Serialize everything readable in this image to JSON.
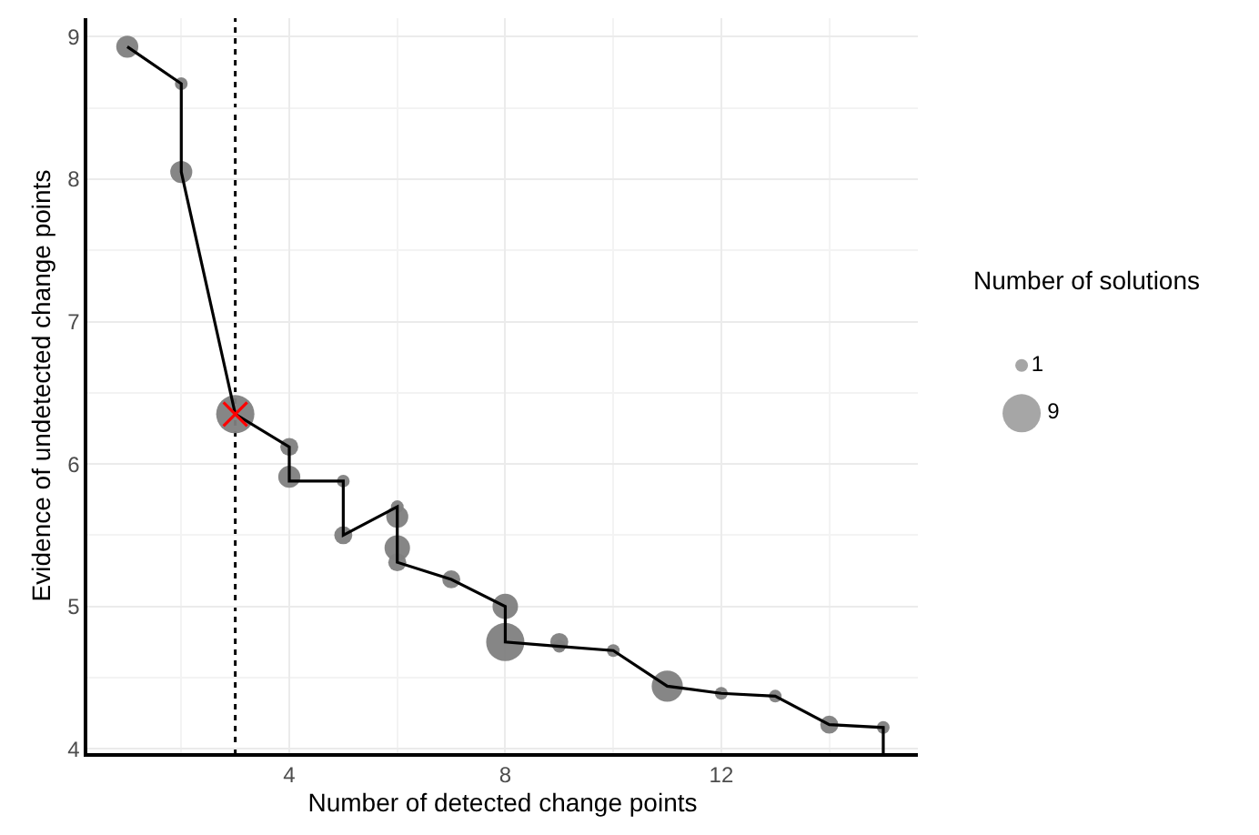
{
  "chart_data": {
    "type": "bubble",
    "xlabel": "Number of detected change points",
    "ylabel": "Evidence of undetected change points",
    "legend_title": "Number of solutions",
    "xlim": [
      0.26,
      15.64
    ],
    "xticks": [
      4,
      8,
      12
    ],
    "ylim": [
      3.97,
      9.13
    ],
    "yticks": [
      4,
      5,
      6,
      7,
      8,
      9
    ],
    "grid": true,
    "size_legend": [
      1,
      9
    ],
    "ref_lines": [
      {
        "axis": "x",
        "value": 3,
        "line_style": "dotted",
        "color": "#000000"
      }
    ],
    "series": [
      {
        "color": "#808080",
        "x": [
          1,
          2,
          2,
          3,
          4,
          4,
          5,
          5,
          6,
          6,
          6,
          6,
          7,
          8,
          8,
          9,
          9,
          10,
          11,
          12,
          13,
          14,
          15
        ],
        "values": [
          8.93,
          8.67,
          8.05,
          6.35,
          6.12,
          5.91,
          5.88,
          5.5,
          5.7,
          5.63,
          5.41,
          5.31,
          5.19,
          5.0,
          4.75,
          4.75,
          4.72,
          4.69,
          4.44,
          4.39,
          4.37,
          4.17,
          4.15
        ],
        "sizes": [
          3,
          1,
          3,
          9,
          2,
          3,
          1,
          2,
          1,
          3,
          4,
          2,
          2,
          4,
          9,
          2,
          1,
          1,
          6,
          1,
          1,
          2,
          1
        ]
      },
      {
        "type": "line",
        "color": "#000000",
        "marker": "none",
        "line_style": "solid",
        "x": [
          1,
          2,
          2,
          3,
          4,
          4,
          5,
          5,
          6,
          6,
          7,
          8,
          8,
          9,
          10,
          11,
          12,
          13,
          14,
          15,
          15
        ],
        "values": [
          8.93,
          8.67,
          8.05,
          6.35,
          6.12,
          5.88,
          5.88,
          5.5,
          5.7,
          5.31,
          5.19,
          5.0,
          4.75,
          4.72,
          4.69,
          4.44,
          4.39,
          4.37,
          4.17,
          4.15,
          3.97
        ]
      },
      {
        "type": "scatter",
        "color": "#ff0000",
        "marker": "cross",
        "x": [
          3
        ],
        "values": [
          6.35
        ]
      }
    ]
  }
}
